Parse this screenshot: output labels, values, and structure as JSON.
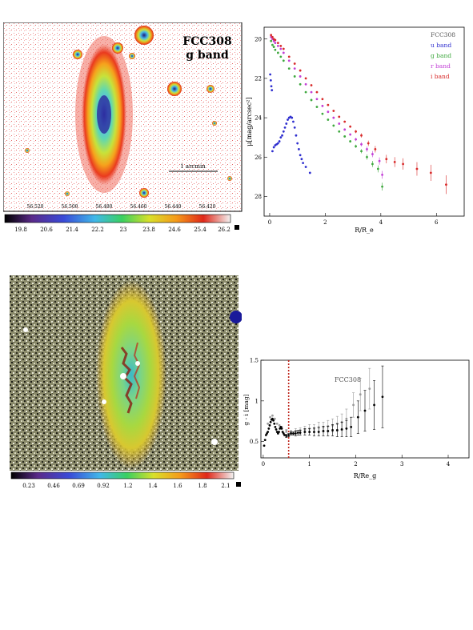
{
  "figure_top_left": {
    "title_line1": "FCC308",
    "title_line2": "g band",
    "scale_bar_label": "1 arcmin",
    "ra_ticks": [
      "56.520",
      "56.500",
      "56.480",
      "56.460",
      "56.440",
      "56.420"
    ],
    "colorbar_ticks": [
      "19.8",
      "20.6",
      "21.4",
      "22.2",
      "23",
      "23.8",
      "24.6",
      "25.4",
      "26.2"
    ]
  },
  "figure_bottom_left": {
    "colorbar_ticks": [
      "0.23",
      "0.46",
      "0.69",
      "0.92",
      "1.2",
      "1.4",
      "1.6",
      "1.8",
      "2.1"
    ]
  },
  "chart_data": [
    {
      "type": "scatter",
      "title": "",
      "xlabel": "R/R_e",
      "ylabel": "μ[mag/arcsec²]",
      "xlim": [
        -0.2,
        7.0
      ],
      "ylim": [
        29,
        19.4
      ],
      "y_inverted": true,
      "x_ticks": [
        "0",
        "2",
        "4",
        "6"
      ],
      "y_ticks": [
        "20",
        "22",
        "24",
        "26",
        "28"
      ],
      "legend_title": "FCC308",
      "legend_position": "top-right",
      "series": [
        {
          "name": "u band",
          "color": "#2f2fcf",
          "points": [
            [
              0.02,
              21.8
            ],
            [
              0.04,
              22.1
            ],
            [
              0.06,
              22.4
            ],
            [
              0.08,
              22.6
            ],
            [
              0.1,
              25.7
            ],
            [
              0.15,
              25.5
            ],
            [
              0.2,
              25.4
            ],
            [
              0.25,
              25.35
            ],
            [
              0.3,
              25.3
            ],
            [
              0.35,
              25.2
            ],
            [
              0.4,
              25.0
            ],
            [
              0.45,
              24.9
            ],
            [
              0.5,
              24.7
            ],
            [
              0.55,
              24.5
            ],
            [
              0.6,
              24.3
            ],
            [
              0.65,
              24.1
            ],
            [
              0.7,
              24.0
            ],
            [
              0.75,
              23.95
            ],
            [
              0.8,
              24.0
            ],
            [
              0.85,
              24.2
            ],
            [
              0.9,
              24.5
            ],
            [
              0.95,
              24.9
            ],
            [
              1.0,
              25.3
            ],
            [
              1.05,
              25.6
            ],
            [
              1.1,
              25.9
            ],
            [
              1.15,
              26.1
            ],
            [
              1.2,
              26.3
            ],
            [
              1.3,
              26.5
            ],
            [
              1.45,
              26.8
            ]
          ]
        },
        {
          "name": "g band",
          "color": "#3fa83f",
          "points": [
            [
              0.05,
              20.1
            ],
            [
              0.1,
              20.3
            ],
            [
              0.15,
              20.4
            ],
            [
              0.2,
              20.55
            ],
            [
              0.3,
              20.7
            ],
            [
              0.4,
              20.9
            ],
            [
              0.5,
              21.1
            ],
            [
              0.7,
              21.5
            ],
            [
              0.9,
              21.9
            ],
            [
              1.1,
              22.3
            ],
            [
              1.3,
              22.7
            ],
            [
              1.5,
              23.1
            ],
            [
              1.7,
              23.45
            ],
            [
              1.9,
              23.8
            ],
            [
              2.1,
              24.1
            ],
            [
              2.3,
              24.4
            ],
            [
              2.5,
              24.7
            ],
            [
              2.7,
              24.95
            ],
            [
              2.9,
              25.2
            ],
            [
              3.1,
              25.45
            ],
            [
              3.3,
              25.7
            ],
            [
              3.5,
              26.0
            ],
            [
              3.7,
              26.35
            ],
            [
              3.9,
              26.6
            ],
            [
              4.05,
              27.5
            ]
          ]
        },
        {
          "name": "r band",
          "color": "#c23fd6",
          "points": [
            [
              0.05,
              19.9
            ],
            [
              0.1,
              20.0
            ],
            [
              0.15,
              20.1
            ],
            [
              0.2,
              20.2
            ],
            [
              0.3,
              20.35
            ],
            [
              0.4,
              20.5
            ],
            [
              0.5,
              20.7
            ],
            [
              0.7,
              21.1
            ],
            [
              0.9,
              21.5
            ],
            [
              1.1,
              21.9
            ],
            [
              1.3,
              22.3
            ],
            [
              1.5,
              22.7
            ],
            [
              1.7,
              23.05
            ],
            [
              1.9,
              23.4
            ],
            [
              2.1,
              23.7
            ],
            [
              2.3,
              24.0
            ],
            [
              2.5,
              24.3
            ],
            [
              2.7,
              24.6
            ],
            [
              2.9,
              24.85
            ],
            [
              3.1,
              25.1
            ],
            [
              3.3,
              25.35
            ],
            [
              3.5,
              25.6
            ],
            [
              3.7,
              25.85
            ],
            [
              3.95,
              26.2
            ],
            [
              4.05,
              26.9
            ]
          ]
        },
        {
          "name": "i band",
          "color": "#d82a2a",
          "points": [
            [
              0.05,
              19.8
            ],
            [
              0.1,
              19.9
            ],
            [
              0.15,
              20.0
            ],
            [
              0.2,
              20.05
            ],
            [
              0.3,
              20.2
            ],
            [
              0.4,
              20.35
            ],
            [
              0.5,
              20.5
            ],
            [
              0.7,
              20.9
            ],
            [
              0.9,
              21.25
            ],
            [
              1.1,
              21.6
            ],
            [
              1.3,
              22.0
            ],
            [
              1.5,
              22.35
            ],
            [
              1.7,
              22.7
            ],
            [
              1.9,
              23.05
            ],
            [
              2.1,
              23.35
            ],
            [
              2.3,
              23.65
            ],
            [
              2.5,
              23.95
            ],
            [
              2.7,
              24.2
            ],
            [
              2.9,
              24.45
            ],
            [
              3.1,
              24.7
            ],
            [
              3.3,
              24.9
            ],
            [
              3.55,
              25.3
            ],
            [
              3.8,
              25.6
            ],
            [
              4.2,
              26.1
            ],
            [
              4.5,
              26.25
            ],
            [
              4.8,
              26.35
            ],
            [
              5.3,
              26.6
            ],
            [
              5.8,
              26.8
            ],
            [
              6.35,
              27.4
            ]
          ]
        }
      ]
    },
    {
      "type": "scatter",
      "title": "",
      "xlabel": "R/Re_g",
      "ylabel": "g - i [mag]",
      "xlim": [
        -0.05,
        4.45
      ],
      "ylim": [
        0.3,
        1.5
      ],
      "x_ticks": [
        "0",
        "1",
        "2",
        "3",
        "4"
      ],
      "y_ticks": [
        "0.5",
        "1",
        "1.5"
      ],
      "annotation": "FCC308",
      "reference_line_x": 0.55,
      "reference_line_color": "#c0281e",
      "series": [
        {
          "name": "",
          "color": "#000000",
          "points": [
            [
              0.02,
              0.45
            ],
            [
              0.04,
              0.52
            ],
            [
              0.06,
              0.58
            ],
            [
              0.08,
              0.6
            ],
            [
              0.1,
              0.62
            ],
            [
              0.12,
              0.66
            ],
            [
              0.14,
              0.7
            ],
            [
              0.16,
              0.74
            ],
            [
              0.18,
              0.77
            ],
            [
              0.2,
              0.78
            ],
            [
              0.22,
              0.76
            ],
            [
              0.24,
              0.72
            ],
            [
              0.26,
              0.68
            ],
            [
              0.28,
              0.65
            ],
            [
              0.3,
              0.62
            ],
            [
              0.32,
              0.6
            ],
            [
              0.34,
              0.62
            ],
            [
              0.36,
              0.66
            ],
            [
              0.38,
              0.68
            ],
            [
              0.4,
              0.66
            ],
            [
              0.42,
              0.62
            ],
            [
              0.44,
              0.6
            ],
            [
              0.46,
              0.58
            ],
            [
              0.5,
              0.57
            ],
            [
              0.55,
              0.58
            ],
            [
              0.6,
              0.6
            ],
            [
              0.65,
              0.6
            ],
            [
              0.7,
              0.6
            ],
            [
              0.75,
              0.61
            ],
            [
              0.8,
              0.61
            ],
            [
              0.9,
              0.62
            ],
            [
              1.0,
              0.62
            ],
            [
              1.1,
              0.62
            ],
            [
              1.2,
              0.62
            ],
            [
              1.3,
              0.63
            ],
            [
              1.4,
              0.63
            ],
            [
              1.5,
              0.64
            ],
            [
              1.6,
              0.64
            ],
            [
              1.7,
              0.65
            ],
            [
              1.8,
              0.66
            ],
            [
              1.9,
              0.68
            ],
            [
              2.05,
              0.8
            ],
            [
              2.2,
              0.88
            ],
            [
              2.4,
              0.95
            ],
            [
              2.58,
              1.05
            ]
          ],
          "error": [
            0.01,
            0.01,
            0.01,
            0.01,
            0.01,
            0.01,
            0.01,
            0.01,
            0.01,
            0.01,
            0.01,
            0.01,
            0.01,
            0.01,
            0.01,
            0.01,
            0.01,
            0.01,
            0.01,
            0.01,
            0.01,
            0.01,
            0.01,
            0.02,
            0.02,
            0.02,
            0.02,
            0.03,
            0.03,
            0.03,
            0.04,
            0.04,
            0.05,
            0.05,
            0.06,
            0.06,
            0.07,
            0.08,
            0.09,
            0.1,
            0.12,
            0.2,
            0.25,
            0.3,
            0.38
          ]
        },
        {
          "name": "",
          "color": "#9a9a9a",
          "points": [
            [
              0.1,
              0.72
            ],
            [
              0.15,
              0.8
            ],
            [
              0.2,
              0.82
            ],
            [
              0.25,
              0.78
            ],
            [
              0.3,
              0.72
            ],
            [
              0.35,
              0.7
            ],
            [
              0.4,
              0.68
            ],
            [
              0.5,
              0.63
            ],
            [
              0.6,
              0.62
            ],
            [
              0.7,
              0.63
            ],
            [
              0.8,
              0.64
            ],
            [
              0.9,
              0.65
            ],
            [
              1.0,
              0.66
            ],
            [
              1.1,
              0.66
            ],
            [
              1.2,
              0.68
            ],
            [
              1.3,
              0.68
            ],
            [
              1.4,
              0.69
            ],
            [
              1.5,
              0.7
            ],
            [
              1.6,
              0.72
            ],
            [
              1.7,
              0.74
            ],
            [
              1.8,
              0.78
            ],
            [
              1.95,
              0.95
            ],
            [
              2.1,
              1.08
            ],
            [
              2.3,
              1.15
            ]
          ],
          "error": [
            0.01,
            0.01,
            0.01,
            0.01,
            0.01,
            0.01,
            0.01,
            0.02,
            0.02,
            0.03,
            0.03,
            0.04,
            0.05,
            0.05,
            0.06,
            0.06,
            0.07,
            0.08,
            0.09,
            0.1,
            0.12,
            0.15,
            0.2,
            0.25
          ]
        }
      ]
    }
  ]
}
